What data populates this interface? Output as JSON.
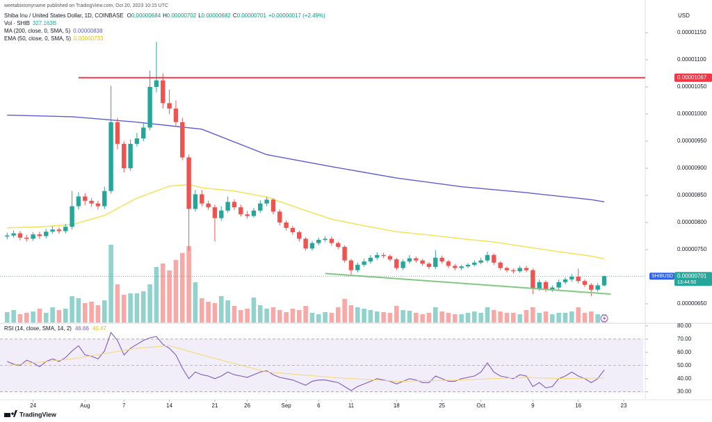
{
  "published": "weetabixismyname published on TradingView.com, Oct 20, 2023 10:15 UTC",
  "brand": "TradingView",
  "chart_data": [
    {
      "type": "candlestick",
      "title": "Shiba Inu / United States Dollar, 1D, COINBASE",
      "ohlc": [
        {
          "key": "O",
          "value": "0.00000684"
        },
        {
          "key": "H",
          "value": "0.00000702"
        },
        {
          "key": "L",
          "value": "0.00000682"
        },
        {
          "key": "C",
          "value": "0.00000701"
        }
      ],
      "change": "+0.00000017 (+2.49%)",
      "currency": "USD",
      "up_color": "#26a69a",
      "down_color": "#ef5350",
      "x": [
        0,
        1,
        2,
        3,
        4,
        5,
        6,
        7,
        8,
        9,
        10,
        11,
        12,
        13,
        14,
        15,
        16,
        17,
        18,
        19,
        20,
        21,
        22,
        23,
        24,
        25,
        26,
        27,
        28,
        29,
        30,
        31,
        32,
        33,
        34,
        35,
        36,
        37,
        38,
        39,
        40,
        41,
        42,
        43,
        44,
        45,
        46,
        47,
        48,
        49,
        50,
        51,
        52,
        53,
        54,
        55,
        56,
        57,
        58,
        59,
        60,
        61,
        62,
        63,
        64,
        65,
        66,
        67,
        68,
        69,
        70,
        71,
        72,
        73,
        74,
        75,
        76,
        77,
        78,
        79,
        80,
        81,
        82,
        83,
        84,
        85,
        86,
        87,
        88,
        89,
        90,
        91,
        92
      ],
      "open": [
        7.74e-06,
        7.76e-06,
        7.8e-06,
        7.72e-06,
        7.7e-06,
        7.78e-06,
        7.75e-06,
        7.83e-06,
        7.87e-06,
        7.84e-06,
        7.92e-06,
        8.3e-06,
        8.48e-06,
        8.4e-06,
        8.35e-06,
        8.3e-06,
        8.58e-06,
        9.85e-06,
        9.45e-06,
        9e-06,
        9.45e-06,
        9.55e-06,
        9.75e-06,
        1.05e-05,
        1.062e-05,
        1.02e-05,
        1.01e-05,
        9.85e-06,
        9.2e-06,
        8.25e-06,
        8.52e-06,
        8.35e-06,
        8.28e-06,
        8.08e-06,
        8.22e-06,
        8.38e-06,
        8.28e-06,
        8.15e-06,
        8.12e-06,
        8.22e-06,
        8.35e-06,
        8.42e-06,
        8.2e-06,
        8e-06,
        7.9e-06,
        7.82e-06,
        7.7e-06,
        7.52e-06,
        7.62e-06,
        7.68e-06,
        7.7e-06,
        7.62e-06,
        7.55e-06,
        7.3e-06,
        7.12e-06,
        7.22e-06,
        7.28e-06,
        7.35e-06,
        7.4e-06,
        7.38e-06,
        7.32e-06,
        7.16e-06,
        7.28e-06,
        7.34e-06,
        7.3e-06,
        7.24e-06,
        7.18e-06,
        7.35e-06,
        7.28e-06,
        7.2e-06,
        7.16e-06,
        7.19e-06,
        7.22e-06,
        7.26e-06,
        7.3e-06,
        7.4e-06,
        7.26e-06,
        7.16e-06,
        7.12e-06,
        7.1e-06,
        7.16e-06,
        7.12e-06,
        6.78e-06,
        6.9e-06,
        6.76e-06,
        6.8e-06,
        6.9e-06,
        6.95e-06,
        7e-06,
        6.92e-06,
        6.85e-06,
        6.76e-06,
        6.84e-06
      ],
      "high": [
        7.81e-06,
        7.85e-06,
        7.84e-06,
        7.77e-06,
        7.82e-06,
        7.83e-06,
        7.88e-06,
        7.93e-06,
        7.91e-06,
        7.97e-06,
        8.58e-06,
        8.56e-06,
        8.54e-06,
        8.45e-06,
        8.4e-06,
        8.66e-06,
        1.052e-05,
        9.93e-06,
        9.5e-06,
        9.53e-06,
        9.65e-06,
        9.85e-06,
        1.08e-05,
        1.133e-05,
        1.075e-05,
        1.045e-05,
        1.025e-05,
        9.93e-06,
        9.25e-06,
        8.6e-06,
        8.6e-06,
        8.4e-06,
        8.33e-06,
        8.3e-06,
        8.48e-06,
        8.43e-06,
        8.33e-06,
        8.21e-06,
        8.27e-06,
        8.41e-06,
        8.47e-06,
        8.45e-06,
        8.24e-06,
        8.04e-06,
        7.94e-06,
        7.85e-06,
        7.73e-06,
        7.66e-06,
        7.72e-06,
        7.75e-06,
        7.74e-06,
        7.65e-06,
        7.58e-06,
        7.33e-06,
        7.26e-06,
        7.33e-06,
        7.4e-06,
        7.45e-06,
        7.44e-06,
        7.41e-06,
        7.35e-06,
        7.32e-06,
        7.4e-06,
        7.37e-06,
        7.33e-06,
        7.27e-06,
        7.49e-06,
        7.39e-06,
        7.31e-06,
        7.23e-06,
        7.22e-06,
        7.25e-06,
        7.3e-06,
        7.35e-06,
        7.46e-06,
        7.43e-06,
        7.29e-06,
        7.19e-06,
        7.15e-06,
        7.2e-06,
        7.2e-06,
        7.15e-06,
        6.95e-06,
        6.93e-06,
        6.84e-06,
        6.95e-06,
        6.99e-06,
        7.05e-06,
        7.15e-06,
        6.95e-06,
        6.88e-06,
        6.88e-06,
        7.02e-06
      ],
      "low": [
        7.69e-06,
        7.72e-06,
        7.67e-06,
        7.65e-06,
        7.66e-06,
        7.7e-06,
        7.71e-06,
        7.79e-06,
        7.79e-06,
        7.8e-06,
        7.87e-06,
        8.24e-06,
        8.32e-06,
        8.29e-06,
        8.24e-06,
        8.25e-06,
        8.53e-06,
        9.35e-06,
        8.92e-06,
        8.95e-06,
        9.4e-06,
        9.5e-06,
        9.7e-06,
        1.04e-05,
        1.01e-05,
        1e-05,
        9.77e-06,
        9.15e-06,
        7.48e-06,
        8.2e-06,
        8.3e-06,
        8.23e-06,
        7.65e-06,
        8.03e-06,
        8.18e-06,
        8.23e-06,
        8.11e-06,
        8.07e-06,
        8.09e-06,
        8.18e-06,
        8.3e-06,
        8.15e-06,
        7.95e-06,
        7.85e-06,
        7.77e-06,
        7.65e-06,
        7.48e-06,
        7.48e-06,
        7.58e-06,
        7.64e-06,
        7.57e-06,
        7.51e-06,
        7.26e-06,
        7.04e-06,
        7.08e-06,
        7.18e-06,
        7.24e-06,
        7.31e-06,
        7.34e-06,
        7.28e-06,
        7.12e-06,
        7.12e-06,
        7.24e-06,
        7.26e-06,
        7.2e-06,
        7.14e-06,
        7.14e-06,
        7.24e-06,
        7.16e-06,
        7.12e-06,
        7.12e-06,
        7.16e-06,
        7.19e-06,
        7.23e-06,
        7.26e-06,
        7.22e-06,
        7.12e-06,
        7.08e-06,
        7.06e-06,
        7.07e-06,
        7.08e-06,
        6.68e-06,
        6.74e-06,
        6.72e-06,
        6.72e-06,
        6.76e-06,
        6.86e-06,
        6.91e-06,
        6.88e-06,
        6.81e-06,
        6.64e-06,
        6.72e-06,
        6.82e-06
      ],
      "close": [
        7.76e-06,
        7.8e-06,
        7.72e-06,
        7.7e-06,
        7.78e-06,
        7.75e-06,
        7.83e-06,
        7.87e-06,
        7.84e-06,
        7.92e-06,
        8.3e-06,
        8.48e-06,
        8.4e-06,
        8.35e-06,
        8.3e-06,
        8.58e-06,
        9.85e-06,
        9.45e-06,
        9e-06,
        9.45e-06,
        9.55e-06,
        9.75e-06,
        1.05e-05,
        1.062e-05,
        1.02e-05,
        1.01e-05,
        9.85e-06,
        9.2e-06,
        8.25e-06,
        8.52e-06,
        8.35e-06,
        8.28e-06,
        8.08e-06,
        8.22e-06,
        8.38e-06,
        8.28e-06,
        8.15e-06,
        8.12e-06,
        8.22e-06,
        8.35e-06,
        8.42e-06,
        8.2e-06,
        8e-06,
        7.9e-06,
        7.82e-06,
        7.7e-06,
        7.52e-06,
        7.62e-06,
        7.68e-06,
        7.7e-06,
        7.62e-06,
        7.55e-06,
        7.3e-06,
        7.12e-06,
        7.22e-06,
        7.28e-06,
        7.35e-06,
        7.4e-06,
        7.38e-06,
        7.32e-06,
        7.16e-06,
        7.28e-06,
        7.34e-06,
        7.3e-06,
        7.24e-06,
        7.18e-06,
        7.35e-06,
        7.28e-06,
        7.2e-06,
        7.16e-06,
        7.19e-06,
        7.22e-06,
        7.26e-06,
        7.3e-06,
        7.4e-06,
        7.26e-06,
        7.16e-06,
        7.12e-06,
        7.1e-06,
        7.16e-06,
        7.12e-06,
        6.78e-06,
        6.9e-06,
        6.76e-06,
        6.8e-06,
        6.9e-06,
        6.95e-06,
        7e-06,
        6.92e-06,
        6.85e-06,
        6.76e-06,
        6.84e-06,
        7.01e-06
      ],
      "xlim": [
        -1.1,
        98
      ],
      "xticks": [
        {
          "value": 4,
          "label": "24"
        },
        {
          "value": 12,
          "label": "Aug"
        },
        {
          "value": 18,
          "label": "7"
        },
        {
          "value": 25,
          "label": "14"
        },
        {
          "value": 32,
          "label": "21"
        },
        {
          "value": 37,
          "label": "26"
        },
        {
          "value": 43,
          "label": "Sep"
        },
        {
          "value": 48,
          "label": "6"
        },
        {
          "value": 53,
          "label": "11"
        },
        {
          "value": 60,
          "label": "18"
        },
        {
          "value": 67,
          "label": "25"
        },
        {
          "value": 73,
          "label": "Oct"
        },
        {
          "value": 81,
          "label": "9"
        },
        {
          "value": 88,
          "label": "16"
        },
        {
          "value": 95,
          "label": "23"
        }
      ],
      "ylim": [
        6.154e-06,
        1.191e-05
      ],
      "yticks": [
        {
          "value": 6.5e-06,
          "label": "0.00000650"
        },
        {
          "value": 7.5e-06,
          "label": "0.00000750"
        },
        {
          "value": 8e-06,
          "label": "0.00000800"
        },
        {
          "value": 8.5e-06,
          "label": "0.00000850"
        },
        {
          "value": 9e-06,
          "label": "0.00000900"
        },
        {
          "value": 9.5e-06,
          "label": "0.00000950"
        },
        {
          "value": 1e-05,
          "label": "0.00001000"
        },
        {
          "value": 1.05e-05,
          "label": "0.00001050"
        },
        {
          "value": 1.1e-05,
          "label": "0.00001100"
        },
        {
          "value": 1.15e-05,
          "label": "0.00001150"
        }
      ],
      "lines": [
        {
          "name": "MA (200, close, 0, SMA, 5)",
          "last_label": "0.00000838",
          "color": "#5b5bd6",
          "x": [
            0,
            10,
            20,
            30,
            40,
            50,
            60,
            70,
            80,
            90,
            92
          ],
          "values": [
            9.98e-06,
            9.95e-06,
            9.85e-06,
            9.72e-06,
            9.25e-06,
            9.03e-06,
            8.82e-06,
            8.66e-06,
            8.55e-06,
            8.42e-06,
            8.38e-06
          ]
        },
        {
          "name": "EMA (50, close, 0, SMA, 5)",
          "last_label": "0.00000733",
          "color": "#f5e04a",
          "x": [
            0,
            5,
            10,
            15,
            20,
            25,
            28,
            30,
            35,
            40,
            45,
            50,
            55,
            60,
            65,
            70,
            75,
            80,
            85,
            90,
            92
          ],
          "values": [
            7.9e-06,
            7.92e-06,
            7.96e-06,
            8.13e-06,
            8.45e-06,
            8.67e-06,
            8.7e-06,
            8.64e-06,
            8.58e-06,
            8.47e-06,
            8.26e-06,
            8.06e-06,
            7.94e-06,
            7.83e-06,
            7.77e-06,
            7.7e-06,
            7.64e-06,
            7.55e-06,
            7.46e-06,
            7.38e-06,
            7.33e-06
          ]
        }
      ],
      "hline": {
        "value": 1.067e-05,
        "label": "0.00001067",
        "from_x": 11,
        "color": "#f23645"
      },
      "trendline": {
        "x": [
          49,
          93
        ],
        "values": [
          7.06e-06,
          6.68e-06
        ],
        "color": "#81c784"
      },
      "last_price": {
        "symbol": "SHIBUSD",
        "value": 7.01e-06,
        "label": "0.00000701",
        "countdown": "13:44:50",
        "color": "#26a69a"
      }
    },
    {
      "type": "bar",
      "name": "Vol · SHIB",
      "last_label": "327.163B",
      "up_color": "rgba(38,166,154,0.5)",
      "down_color": "rgba(239,83,80,0.5)",
      "label_color": "#26a69a",
      "x": [
        0,
        1,
        2,
        3,
        4,
        5,
        6,
        7,
        8,
        9,
        10,
        11,
        12,
        13,
        14,
        15,
        16,
        17,
        18,
        19,
        20,
        21,
        22,
        23,
        24,
        25,
        26,
        27,
        28,
        29,
        30,
        31,
        32,
        33,
        34,
        35,
        36,
        37,
        38,
        39,
        40,
        41,
        42,
        43,
        44,
        45,
        46,
        47,
        48,
        49,
        50,
        51,
        52,
        53,
        54,
        55,
        56,
        57,
        58,
        59,
        60,
        61,
        62,
        63,
        64,
        65,
        66,
        67,
        68,
        69,
        70,
        71,
        72,
        73,
        74,
        75,
        76,
        77,
        78,
        79,
        80,
        81,
        82,
        83,
        84,
        85,
        86,
        87,
        88,
        89,
        90,
        91,
        92
      ],
      "values": [
        410,
        491,
        328,
        382,
        437,
        546,
        382,
        601,
        491,
        546,
        1037,
        956,
        764,
        819,
        683,
        874,
        3058,
        1502,
        1092,
        1147,
        1147,
        1229,
        1502,
        2184,
        2321,
        2048,
        2457,
        2730,
        3003,
        1583,
        956,
        819,
        764,
        1037,
        874,
        655,
        491,
        546,
        983,
        683,
        546,
        601,
        491,
        410,
        546,
        491,
        655,
        382,
        328,
        410,
        382,
        601,
        928,
        683,
        601,
        546,
        491,
        437,
        410,
        382,
        655,
        491,
        464,
        382,
        328,
        382,
        601,
        437,
        382,
        328,
        328,
        382,
        437,
        382,
        601,
        491,
        437,
        382,
        382,
        328,
        491,
        601,
        382,
        437,
        328,
        382,
        382,
        437,
        601,
        382,
        437,
        328,
        327.163
      ]
    },
    {
      "type": "line",
      "title": "RSI (14, close, SMA, 14, 2)",
      "ylim": [
        24,
        82
      ],
      "yticks": [
        {
          "value": 30,
          "label": "30.00"
        },
        {
          "value": 40,
          "label": "40.00"
        },
        {
          "value": 50,
          "label": "50.00"
        },
        {
          "value": 60,
          "label": "60.00"
        },
        {
          "value": 70,
          "label": "70.00"
        },
        {
          "value": 80,
          "label": "80.00"
        }
      ],
      "levels": [
        70,
        50,
        30
      ],
      "band_color": "#7e57c2",
      "series": [
        {
          "name": "RSI",
          "color": "#7e57c2",
          "x": [
            0,
            1,
            2,
            3,
            4,
            5,
            6,
            7,
            8,
            9,
            10,
            11,
            12,
            13,
            14,
            15,
            16,
            17,
            18,
            19,
            20,
            21,
            22,
            23,
            24,
            25,
            26,
            27,
            28,
            29,
            30,
            31,
            32,
            33,
            34,
            35,
            36,
            37,
            38,
            39,
            40,
            41,
            42,
            43,
            44,
            45,
            46,
            47,
            48,
            49,
            50,
            51,
            52,
            53,
            54,
            55,
            56,
            57,
            58,
            59,
            60,
            61,
            62,
            63,
            64,
            65,
            66,
            67,
            68,
            69,
            70,
            71,
            72,
            73,
            74,
            75,
            76,
            77,
            78,
            79,
            80,
            81,
            82,
            83,
            84,
            85,
            86,
            87,
            88,
            89,
            90,
            91,
            92
          ],
          "values": [
            53,
            51,
            50,
            54,
            52,
            49,
            53,
            55,
            53,
            56,
            61,
            65,
            58,
            57,
            55,
            61,
            75,
            69,
            58,
            63,
            66,
            69,
            71,
            72,
            66,
            63,
            58,
            48,
            40,
            45,
            43,
            42,
            40,
            42,
            45,
            43,
            42,
            41,
            43,
            45,
            46,
            43,
            41,
            40,
            39,
            37,
            35,
            38,
            39,
            39,
            38,
            37,
            34,
            31,
            34,
            36,
            38,
            40,
            39,
            38,
            36,
            38,
            40,
            39,
            37,
            37,
            42,
            40,
            38,
            38,
            40,
            41,
            42,
            45,
            52,
            45,
            42,
            41,
            40,
            43,
            42,
            34,
            37,
            33,
            34,
            40,
            42,
            45,
            42,
            40,
            37,
            40,
            46.66
          ]
        },
        {
          "name": "RSI-based MA",
          "color": "#f5d76e",
          "x": [
            0,
            10,
            20,
            25,
            30,
            40,
            50,
            60,
            70,
            80,
            85,
            92
          ],
          "values": [
            50,
            55,
            63,
            65,
            58,
            45,
            41,
            38,
            39,
            41,
            40,
            40.47
          ]
        }
      ]
    }
  ]
}
